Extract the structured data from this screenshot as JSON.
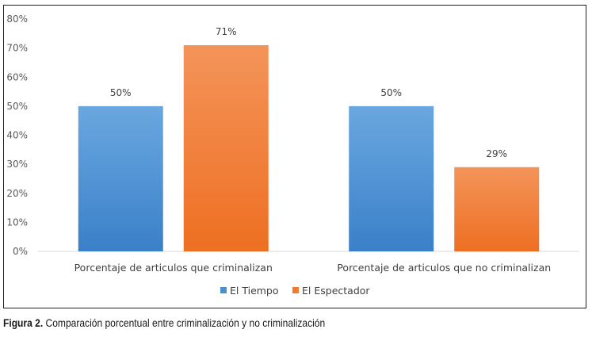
{
  "chart_data": {
    "type": "bar",
    "categories": [
      "Porcentaje de articulos que criminalizan",
      "Porcentaje de articulos que no criminalizan"
    ],
    "series": [
      {
        "name": "El Tiempo",
        "values": [
          50,
          50
        ],
        "color": "#4a8fd0"
      },
      {
        "name": "El Espectador",
        "values": [
          71,
          29
        ],
        "color": "#f07a32"
      }
    ],
    "value_labels": [
      [
        "50%",
        "50%"
      ],
      [
        "71%",
        "29%"
      ]
    ],
    "ylim": [
      0,
      80
    ],
    "yticks": [
      "0%",
      "10%",
      "20%",
      "30%",
      "40%",
      "50%",
      "60%",
      "70%",
      "80%"
    ],
    "grid": false,
    "legend": "bottom"
  },
  "caption": {
    "label": "Figura 2.",
    "text": " Comparación porcentual entre criminalización y no criminalización"
  }
}
